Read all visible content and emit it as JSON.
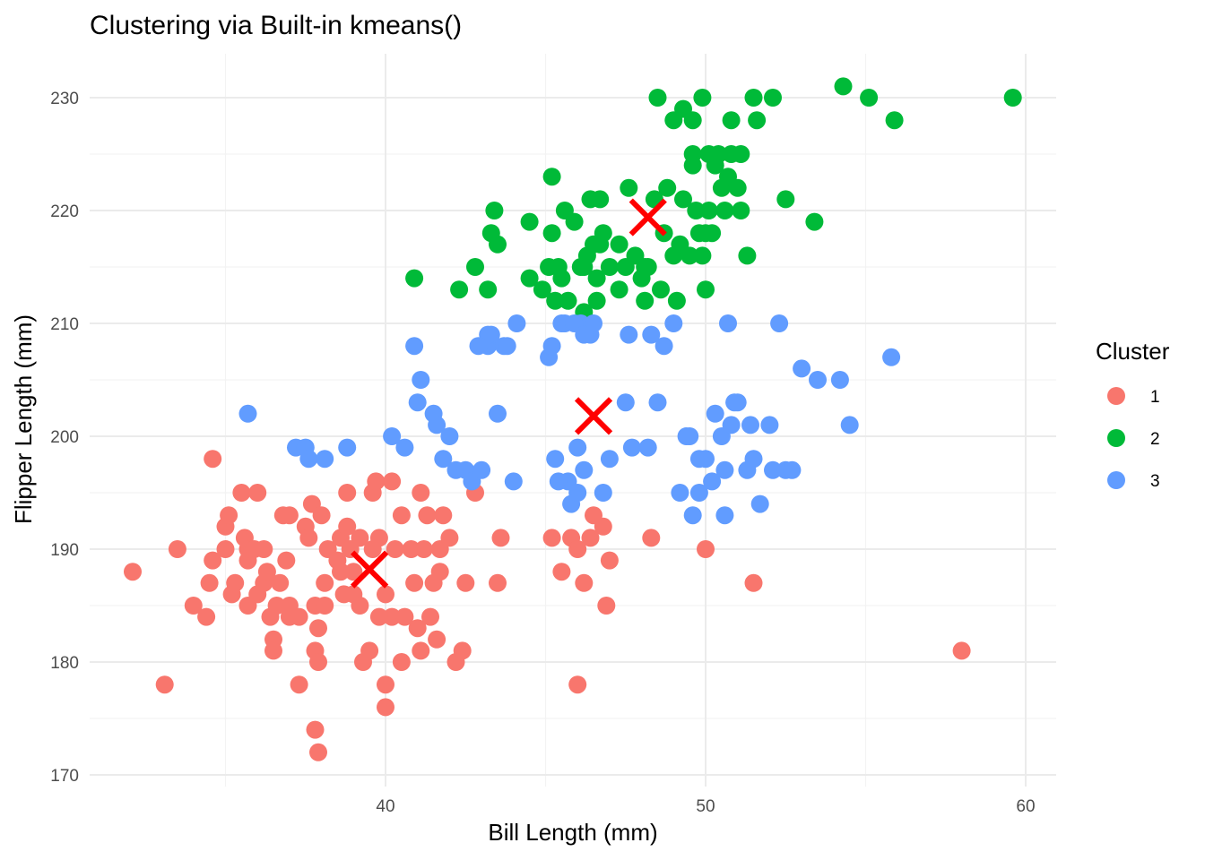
{
  "chart_data": {
    "type": "scatter",
    "title": "Clustering via Built-in kmeans()",
    "xlabel": "Bill Length (mm)",
    "ylabel": "Flipper Length (mm)",
    "xlim": [
      31,
      61
    ],
    "ylim": [
      169,
      234
    ],
    "x_ticks": [
      40,
      50,
      60
    ],
    "y_ticks": [
      170,
      180,
      190,
      200,
      210,
      220,
      230
    ],
    "grid": true,
    "legend": {
      "title": "Cluster",
      "position": "right"
    },
    "centroid_marker": "x",
    "centroid_color": "#FF0000",
    "series": [
      {
        "name": "1",
        "color": "#F8766D",
        "points": [
          [
            32.1,
            188
          ],
          [
            33.1,
            178
          ],
          [
            33.5,
            190
          ],
          [
            34.0,
            185
          ],
          [
            34.4,
            184
          ],
          [
            34.5,
            187
          ],
          [
            34.6,
            189
          ],
          [
            34.6,
            198
          ],
          [
            35.0,
            190
          ],
          [
            35.0,
            192
          ],
          [
            35.1,
            193
          ],
          [
            35.2,
            186
          ],
          [
            35.3,
            187
          ],
          [
            35.5,
            195
          ],
          [
            35.6,
            191
          ],
          [
            35.7,
            189
          ],
          [
            35.7,
            190
          ],
          [
            35.7,
            185
          ],
          [
            35.9,
            190
          ],
          [
            36.0,
            186
          ],
          [
            36.0,
            195
          ],
          [
            36.2,
            187
          ],
          [
            36.2,
            190
          ],
          [
            36.4,
            184
          ],
          [
            36.5,
            182
          ],
          [
            36.5,
            181
          ],
          [
            36.6,
            185
          ],
          [
            36.7,
            187
          ],
          [
            36.8,
            193
          ],
          [
            36.9,
            189
          ],
          [
            37.0,
            184
          ],
          [
            37.0,
            185
          ],
          [
            37.0,
            193
          ],
          [
            37.3,
            184
          ],
          [
            37.3,
            178
          ],
          [
            37.5,
            192
          ],
          [
            37.6,
            191
          ],
          [
            37.7,
            194
          ],
          [
            37.8,
            185
          ],
          [
            37.8,
            181
          ],
          [
            37.9,
            183
          ],
          [
            37.9,
            180
          ],
          [
            37.8,
            174
          ],
          [
            37.9,
            172
          ],
          [
            38.0,
            193
          ],
          [
            38.1,
            185
          ],
          [
            38.1,
            187
          ],
          [
            38.2,
            190
          ],
          [
            38.5,
            189
          ],
          [
            38.6,
            191
          ],
          [
            38.6,
            188
          ],
          [
            38.7,
            186
          ],
          [
            38.8,
            195
          ],
          [
            38.9,
            190
          ],
          [
            39.0,
            186
          ],
          [
            39.2,
            191
          ],
          [
            39.2,
            185
          ],
          [
            39.3,
            180
          ],
          [
            39.5,
            181
          ],
          [
            39.6,
            190
          ],
          [
            39.6,
            195
          ],
          [
            39.7,
            196
          ],
          [
            39.8,
            191
          ],
          [
            40.0,
            186
          ],
          [
            40.2,
            196
          ],
          [
            40.0,
            178
          ],
          [
            40.2,
            184
          ],
          [
            40.3,
            190
          ],
          [
            40.5,
            193
          ],
          [
            40.6,
            184
          ],
          [
            40.8,
            190
          ],
          [
            40.9,
            187
          ],
          [
            41.0,
            183
          ],
          [
            41.1,
            195
          ],
          [
            41.3,
            193
          ],
          [
            41.4,
            184
          ],
          [
            41.5,
            187
          ],
          [
            41.6,
            182
          ],
          [
            41.7,
            190
          ],
          [
            42.0,
            191
          ],
          [
            41.1,
            181
          ],
          [
            41.2,
            190
          ],
          [
            41.8,
            193
          ],
          [
            41.7,
            188
          ],
          [
            42.2,
            180
          ],
          [
            42.4,
            181
          ],
          [
            42.5,
            187
          ],
          [
            42.8,
            195
          ],
          [
            43.5,
            187
          ],
          [
            43.6,
            191
          ],
          [
            39.8,
            184
          ],
          [
            40.0,
            176
          ],
          [
            40.5,
            180
          ],
          [
            39.0,
            188
          ],
          [
            38.8,
            192
          ],
          [
            36.3,
            188
          ],
          [
            45.2,
            191
          ],
          [
            45.5,
            188
          ],
          [
            45.8,
            191
          ],
          [
            46.0,
            190
          ],
          [
            46.2,
            187
          ],
          [
            46.4,
            191
          ],
          [
            46.5,
            193
          ],
          [
            46.8,
            192
          ],
          [
            46.0,
            178
          ],
          [
            46.9,
            185
          ],
          [
            47.0,
            189
          ],
          [
            48.3,
            191
          ],
          [
            50.0,
            190
          ],
          [
            51.5,
            187
          ],
          [
            58.0,
            181
          ]
        ]
      },
      {
        "name": "2",
        "color": "#00BA38",
        "points": [
          [
            40.9,
            214
          ],
          [
            42.3,
            213
          ],
          [
            42.8,
            215
          ],
          [
            43.2,
            213
          ],
          [
            43.3,
            218
          ],
          [
            43.4,
            220
          ],
          [
            43.5,
            217
          ],
          [
            44.5,
            219
          ],
          [
            44.5,
            214
          ],
          [
            44.9,
            213
          ],
          [
            45.1,
            215
          ],
          [
            45.2,
            223
          ],
          [
            45.3,
            212
          ],
          [
            45.4,
            215
          ],
          [
            45.5,
            214
          ],
          [
            45.6,
            220
          ],
          [
            45.7,
            212
          ],
          [
            45.9,
            219
          ],
          [
            46.1,
            215
          ],
          [
            46.2,
            211
          ],
          [
            46.3,
            216
          ],
          [
            46.4,
            221
          ],
          [
            46.5,
            217
          ],
          [
            46.6,
            212
          ],
          [
            46.7,
            221
          ],
          [
            46.8,
            218
          ],
          [
            47.0,
            215
          ],
          [
            47.3,
            213
          ],
          [
            47.5,
            215
          ],
          [
            47.6,
            222
          ],
          [
            47.8,
            216
          ],
          [
            48.0,
            214
          ],
          [
            48.1,
            212
          ],
          [
            48.2,
            215
          ],
          [
            48.4,
            221
          ],
          [
            48.6,
            213
          ],
          [
            48.7,
            218
          ],
          [
            48.8,
            222
          ],
          [
            49.0,
            216
          ],
          [
            49.1,
            212
          ],
          [
            49.2,
            217
          ],
          [
            49.3,
            221
          ],
          [
            49.5,
            216
          ],
          [
            49.6,
            225
          ],
          [
            49.7,
            220
          ],
          [
            49.8,
            218
          ],
          [
            49.9,
            216
          ],
          [
            50.0,
            213
          ],
          [
            50.1,
            220
          ],
          [
            50.2,
            218
          ],
          [
            50.3,
            224
          ],
          [
            50.4,
            225
          ],
          [
            50.5,
            222
          ],
          [
            50.6,
            220
          ],
          [
            50.7,
            223
          ],
          [
            50.8,
            228
          ],
          [
            51.1,
            220
          ],
          [
            51.3,
            216
          ],
          [
            51.5,
            230
          ],
          [
            52.5,
            221
          ],
          [
            53.4,
            219
          ],
          [
            54.3,
            231
          ],
          [
            55.1,
            230
          ],
          [
            55.9,
            228
          ],
          [
            59.6,
            230
          ],
          [
            48.5,
            230
          ],
          [
            49.0,
            228
          ],
          [
            49.3,
            229
          ],
          [
            49.6,
            224
          ],
          [
            50.8,
            225
          ],
          [
            51.1,
            225
          ],
          [
            50.1,
            225
          ],
          [
            49.9,
            230
          ],
          [
            49.6,
            228
          ],
          [
            51.6,
            228
          ],
          [
            52.1,
            230
          ],
          [
            51.0,
            222
          ],
          [
            46.2,
            215
          ],
          [
            47.3,
            217
          ],
          [
            48.1,
            215
          ],
          [
            46.6,
            214
          ],
          [
            50.0,
            218
          ],
          [
            45.2,
            218
          ],
          [
            46.7,
            217
          ]
        ]
      },
      {
        "name": "3",
        "color": "#619CFF",
        "points": [
          [
            35.7,
            202
          ],
          [
            37.2,
            199
          ],
          [
            37.5,
            199
          ],
          [
            37.6,
            198
          ],
          [
            38.1,
            198
          ],
          [
            38.8,
            199
          ],
          [
            40.2,
            200
          ],
          [
            40.6,
            199
          ],
          [
            40.9,
            208
          ],
          [
            41.0,
            203
          ],
          [
            41.1,
            205
          ],
          [
            41.5,
            202
          ],
          [
            41.6,
            201
          ],
          [
            41.8,
            198
          ],
          [
            42.0,
            200
          ],
          [
            42.2,
            197
          ],
          [
            42.5,
            197
          ],
          [
            42.7,
            196
          ],
          [
            43.0,
            197
          ],
          [
            43.2,
            208
          ],
          [
            43.3,
            209
          ],
          [
            43.5,
            202
          ],
          [
            43.7,
            208
          ],
          [
            44.0,
            196
          ],
          [
            44.1,
            210
          ],
          [
            45.1,
            207
          ],
          [
            45.2,
            208
          ],
          [
            45.3,
            198
          ],
          [
            45.5,
            210
          ],
          [
            45.6,
            210
          ],
          [
            45.7,
            196
          ],
          [
            45.8,
            194
          ],
          [
            46.0,
            195
          ],
          [
            46.1,
            210
          ],
          [
            46.2,
            197
          ],
          [
            46.4,
            209
          ],
          [
            46.5,
            210
          ],
          [
            46.8,
            195
          ],
          [
            47.6,
            209
          ],
          [
            47.7,
            199
          ],
          [
            48.2,
            199
          ],
          [
            48.3,
            209
          ],
          [
            48.5,
            203
          ],
          [
            48.7,
            208
          ],
          [
            49.0,
            210
          ],
          [
            49.2,
            195
          ],
          [
            49.5,
            200
          ],
          [
            49.6,
            193
          ],
          [
            49.8,
            195
          ],
          [
            50.0,
            198
          ],
          [
            50.2,
            196
          ],
          [
            50.3,
            202
          ],
          [
            50.5,
            200
          ],
          [
            50.6,
            193
          ],
          [
            50.8,
            201
          ],
          [
            51.0,
            203
          ],
          [
            51.3,
            197
          ],
          [
            51.4,
            201
          ],
          [
            51.5,
            198
          ],
          [
            51.7,
            194
          ],
          [
            52.0,
            201
          ],
          [
            52.1,
            197
          ],
          [
            52.5,
            197
          ],
          [
            52.7,
            197
          ],
          [
            53.0,
            206
          ],
          [
            53.5,
            205
          ],
          [
            54.2,
            205
          ],
          [
            54.5,
            201
          ],
          [
            55.8,
            207
          ],
          [
            50.7,
            210
          ],
          [
            52.3,
            210
          ],
          [
            50.6,
            197
          ],
          [
            50.9,
            203
          ],
          [
            49.8,
            198
          ],
          [
            43.2,
            209
          ],
          [
            43.8,
            208
          ],
          [
            42.9,
            208
          ],
          [
            45.9,
            210
          ],
          [
            46.2,
            209
          ],
          [
            47.0,
            198
          ],
          [
            49.4,
            200
          ],
          [
            46.0,
            199
          ],
          [
            45.4,
            196
          ],
          [
            47.5,
            203
          ]
        ]
      }
    ],
    "centroids": [
      {
        "cluster": "1",
        "x": 39.5,
        "y": 188.2
      },
      {
        "cluster": "2",
        "x": 48.2,
        "y": 219.4
      },
      {
        "cluster": "3",
        "x": 46.5,
        "y": 201.8
      }
    ]
  }
}
